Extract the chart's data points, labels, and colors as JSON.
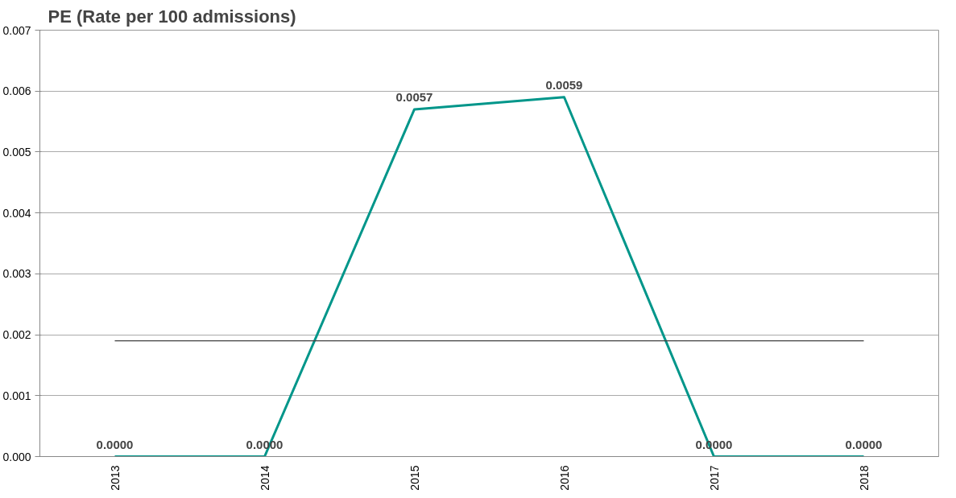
{
  "chart_data": {
    "type": "line",
    "title": "PE (Rate per 100 admissions)",
    "categories": [
      "2013",
      "2014",
      "2015",
      "2016",
      "2017",
      "2018"
    ],
    "series": [
      {
        "color": "#00968a",
        "values": [
          0,
          0,
          0.0057,
          0.0059,
          0,
          0
        ],
        "value_labels": [
          "0.0000",
          "0.0000",
          "0.0057",
          "0.0059",
          "0.0000",
          "0.0000"
        ]
      },
      {
        "color": "#404040",
        "values": [
          0.0019,
          0.0019,
          0.0019,
          0.0019,
          0.0019,
          0.0019
        ]
      }
    ],
    "ylim": [
      0,
      0.007
    ],
    "yticks": [
      {
        "value": 0,
        "label": "0.000"
      },
      {
        "value": 0.001,
        "label": "0.001"
      },
      {
        "value": 0.002,
        "label": "0.002"
      },
      {
        "value": 0.003,
        "label": "0.003"
      },
      {
        "value": 0.004,
        "label": "0.004"
      },
      {
        "value": 0.005,
        "label": "0.005"
      },
      {
        "value": 0.006,
        "label": "0.006"
      },
      {
        "value": 0.007,
        "label": "0.007"
      }
    ],
    "grid": "y",
    "marker": "none",
    "line_style": "solid"
  }
}
